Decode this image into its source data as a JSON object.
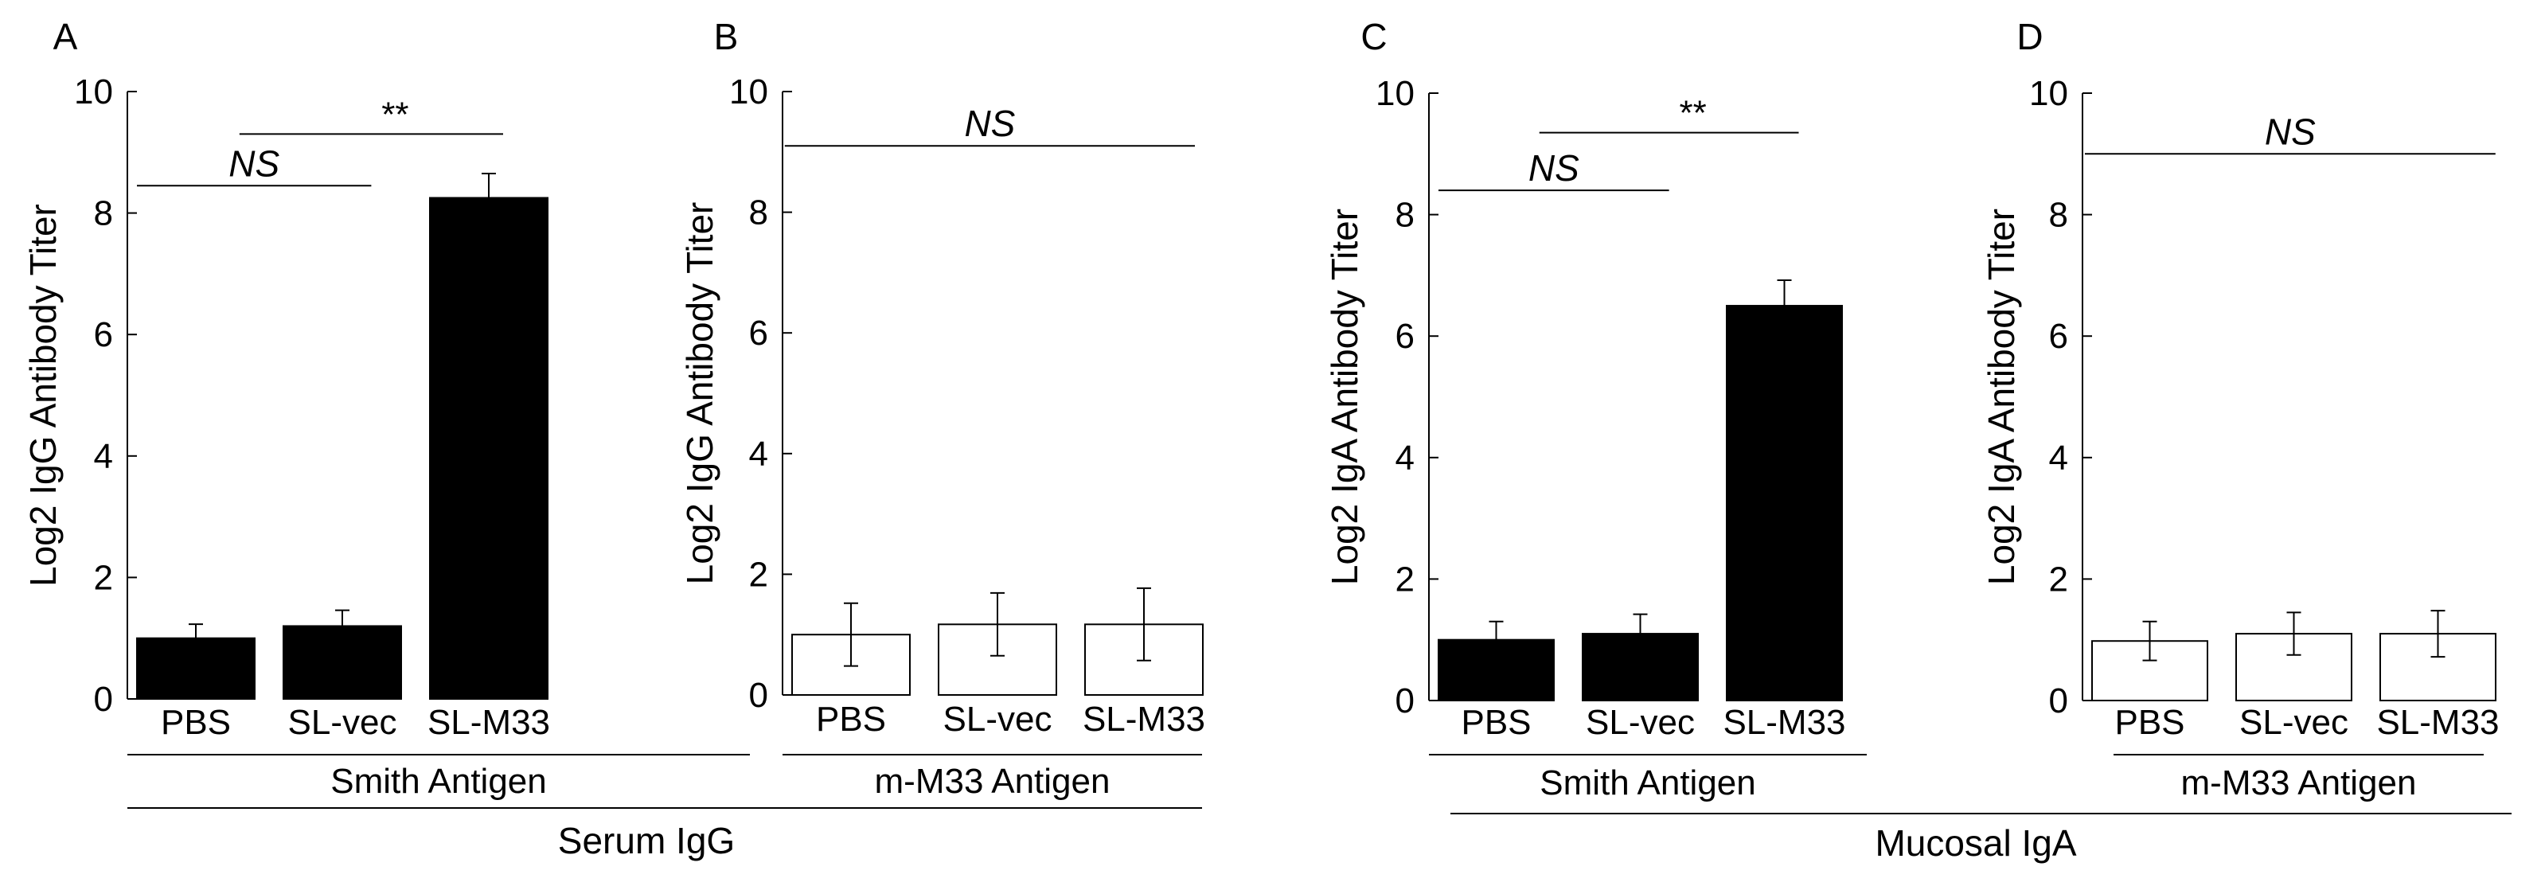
{
  "figure_labels": {
    "serum": "Serum IgG",
    "mucosal": "Mucosal IgA"
  },
  "chart_data": [
    {
      "panel": "A",
      "type": "bar",
      "ylabel": "Log2 IgG Antibody Titer",
      "group_label": "Smith Antigen",
      "ylim": [
        0,
        10
      ],
      "yticks": [
        "0",
        "2",
        "4",
        "6",
        "8",
        "10"
      ],
      "categories": [
        "PBS",
        "SL-vec",
        "SL-M33"
      ],
      "values": [
        1.0,
        1.2,
        8.25
      ],
      "errors": [
        0.23,
        0.26,
        0.4
      ],
      "bar_color": "#000000",
      "significance": [
        {
          "label": "NS",
          "italic": true,
          "level": 8.45,
          "from": 0,
          "to": 1.6
        },
        {
          "label": "**",
          "italic": false,
          "level": 9.3,
          "from": 0.7,
          "to": 2.5
        }
      ]
    },
    {
      "panel": "B",
      "type": "bar",
      "ylabel": "Log2 IgG Antibody Titer",
      "group_label": "m-M33 Antigen",
      "ylim": [
        0,
        10
      ],
      "yticks": [
        "0",
        "2",
        "4",
        "6",
        "8",
        "10"
      ],
      "categories": [
        "PBS",
        "SL-vec",
        "SL-M33"
      ],
      "values": [
        1.0,
        1.17,
        1.17
      ],
      "errors": [
        0.52,
        0.52,
        0.6
      ],
      "bar_color": "#ffffff",
      "significance": [
        {
          "label": "NS",
          "italic": true,
          "level": 9.1,
          "from": -0.05,
          "to": 2.75
        }
      ]
    },
    {
      "panel": "C",
      "type": "bar",
      "ylabel": "Log2 IgA Antibody Titer",
      "group_label": "Smith Antigen",
      "ylim": [
        0,
        10
      ],
      "yticks": [
        "0",
        "2",
        "4",
        "6",
        "8",
        "10"
      ],
      "categories": [
        "PBS",
        "SL-vec",
        "SL-M33"
      ],
      "values": [
        1.0,
        1.1,
        6.5
      ],
      "errors": [
        0.3,
        0.32,
        0.42
      ],
      "bar_color": "#000000",
      "significance": [
        {
          "label": "NS",
          "italic": true,
          "level": 8.4,
          "from": 0,
          "to": 1.6
        },
        {
          "label": "**",
          "italic": false,
          "level": 9.35,
          "from": 0.7,
          "to": 2.5
        }
      ]
    },
    {
      "panel": "D",
      "type": "bar",
      "ylabel": "Log2 IgA Antibody Titer",
      "group_label": "m-M33 Antigen",
      "ylim": [
        0,
        10
      ],
      "yticks": [
        "0",
        "2",
        "4",
        "6",
        "8",
        "10"
      ],
      "categories": [
        "PBS",
        "SL-vec",
        "SL-M33"
      ],
      "values": [
        0.98,
        1.1,
        1.1
      ],
      "errors": [
        0.32,
        0.35,
        0.38
      ],
      "bar_color": "#ffffff",
      "significance": [
        {
          "label": "NS",
          "italic": true,
          "level": 9.0,
          "from": -0.05,
          "to": 2.8
        }
      ]
    }
  ]
}
